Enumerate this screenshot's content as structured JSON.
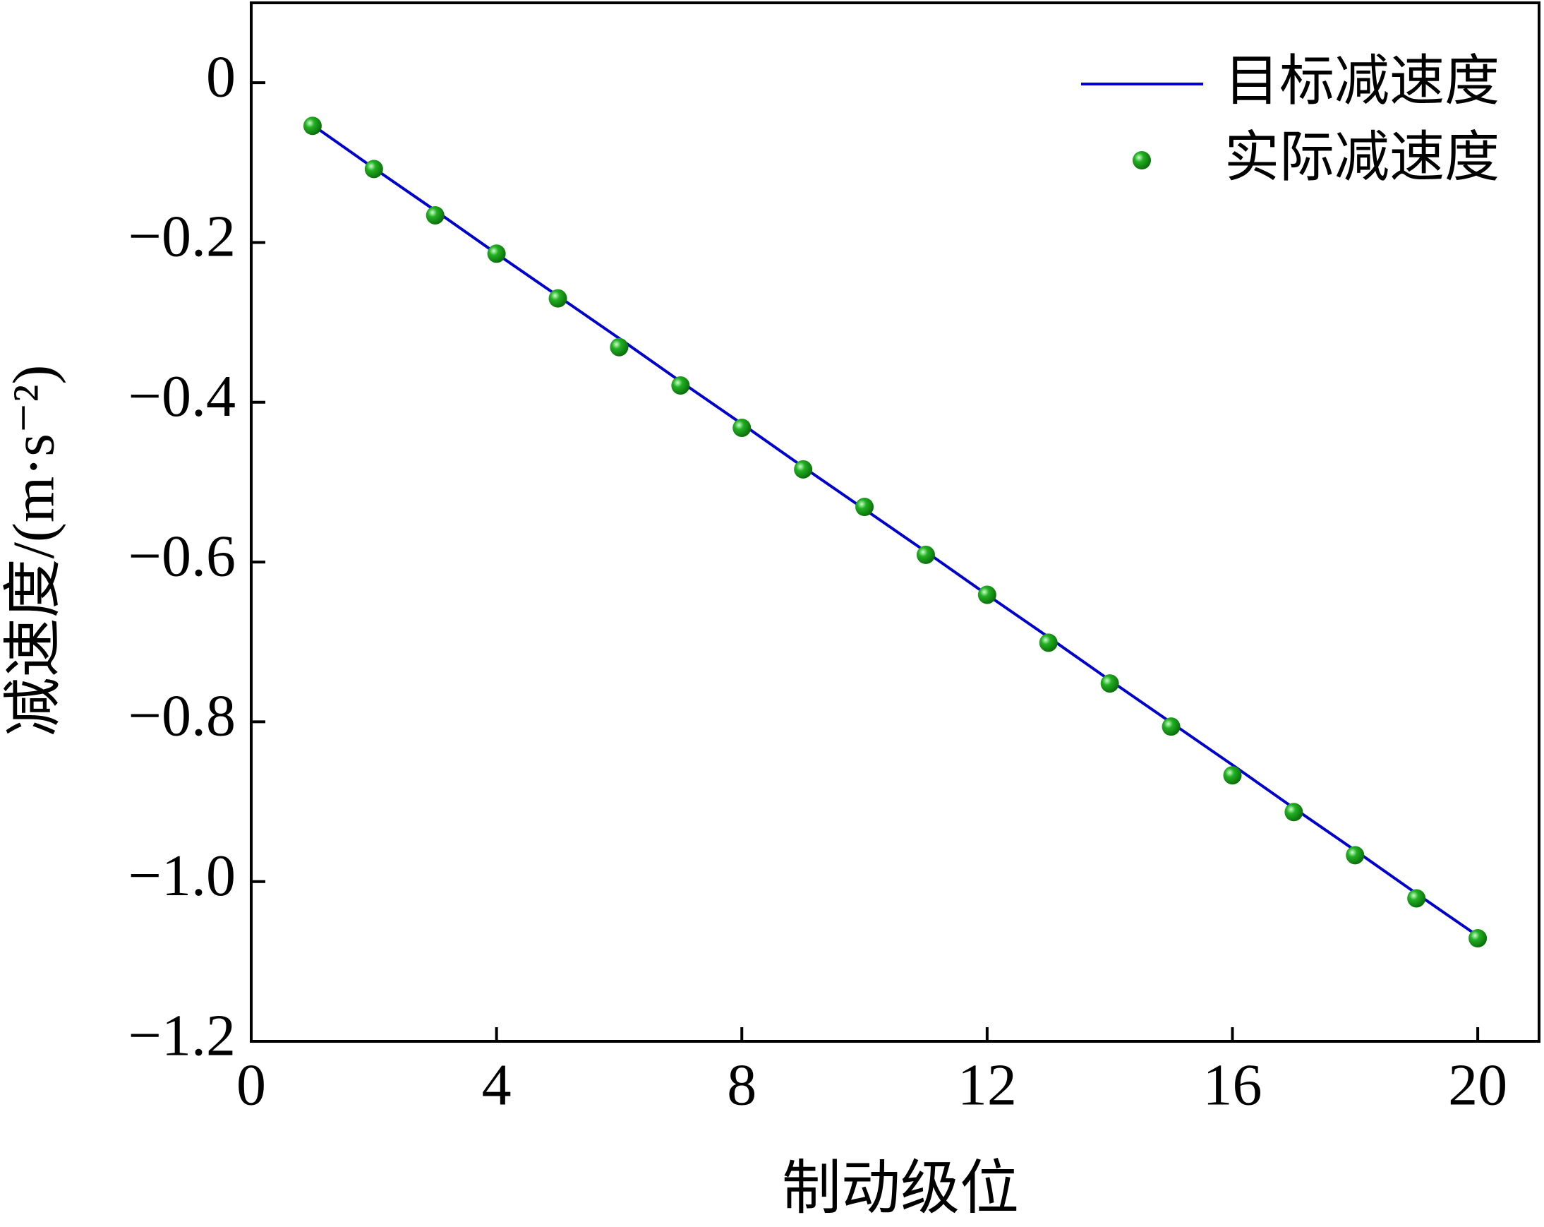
{
  "chart_data": {
    "type": "line",
    "x_label": "制动级位",
    "y_label": "减速度/(m·s⁻²)",
    "x": [
      1,
      2,
      3,
      4,
      5,
      6,
      7,
      8,
      9,
      10,
      11,
      12,
      13,
      14,
      15,
      16,
      17,
      18,
      19,
      20
    ],
    "series": [
      {
        "name": "目标减速度",
        "color": "#0000cc",
        "kind": "line",
        "values": [
          -0.053,
          -0.107,
          -0.16,
          -0.214,
          -0.267,
          -0.32,
          -0.374,
          -0.427,
          -0.481,
          -0.534,
          -0.587,
          -0.641,
          -0.694,
          -0.748,
          -0.801,
          -0.854,
          -0.908,
          -0.961,
          -1.015,
          -1.068
        ]
      },
      {
        "name": "实际减速度",
        "color": "#1a9e1a",
        "kind": "scatter",
        "values": [
          -0.054,
          -0.108,
          -0.166,
          -0.214,
          -0.27,
          -0.331,
          -0.379,
          -0.432,
          -0.484,
          -0.531,
          -0.591,
          -0.641,
          -0.701,
          -0.752,
          -0.806,
          -0.867,
          -0.913,
          -0.967,
          -1.021,
          -1.071
        ]
      }
    ],
    "xlim": [
      0,
      21
    ],
    "ylim": [
      -1.2,
      0.1
    ],
    "xticks": [
      0,
      4,
      8,
      12,
      16,
      20
    ],
    "yticks": [
      0,
      {
        "value": -0.2,
        "label": "−0.2"
      },
      {
        "value": -0.4,
        "label": "−0.4"
      },
      {
        "value": -0.6,
        "label": "−0.6"
      },
      {
        "value": -0.8,
        "label": "−0.8"
      },
      {
        "value": -1.0,
        "label": "−1.0"
      },
      {
        "value": -1.2,
        "label": "−1.2"
      }
    ],
    "legend": "upper right",
    "grid": false
  }
}
